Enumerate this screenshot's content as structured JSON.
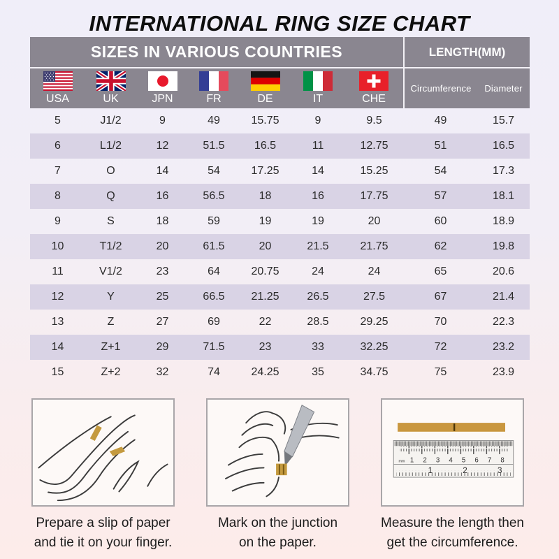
{
  "page_title": "INTERNATIONAL RING SIZE CHART",
  "table": {
    "countries_group_header": "SIZES IN VARIOUS COUNTRIES",
    "length_group_header": "LENGTH(MM)",
    "country_columns": [
      {
        "code": "USA"
      },
      {
        "code": "UK"
      },
      {
        "code": "JPN"
      },
      {
        "code": "FR"
      },
      {
        "code": "DE"
      },
      {
        "code": "IT"
      },
      {
        "code": "CHE"
      }
    ],
    "length_columns": [
      {
        "label": "Circumference"
      },
      {
        "label": "Diameter"
      }
    ]
  },
  "chart_data": {
    "type": "table",
    "title": "INTERNATIONAL RING SIZE CHART",
    "group_headers": [
      "SIZES IN VARIOUS COUNTRIES",
      "LENGTH(MM)"
    ],
    "columns": [
      "USA",
      "UK",
      "JPN",
      "FR",
      "DE",
      "IT",
      "CHE",
      "Circumference",
      "Diameter"
    ],
    "rows": [
      [
        "5",
        "J1/2",
        "9",
        "49",
        "15.75",
        "9",
        "9.5",
        "49",
        "15.7"
      ],
      [
        "6",
        "L1/2",
        "12",
        "51.5",
        "16.5",
        "11",
        "12.75",
        "51",
        "16.5"
      ],
      [
        "7",
        "O",
        "14",
        "54",
        "17.25",
        "14",
        "15.25",
        "54",
        "17.3"
      ],
      [
        "8",
        "Q",
        "16",
        "56.5",
        "18",
        "16",
        "17.75",
        "57",
        "18.1"
      ],
      [
        "9",
        "S",
        "18",
        "59",
        "19",
        "19",
        "20",
        "60",
        "18.9"
      ],
      [
        "10",
        "T1/2",
        "20",
        "61.5",
        "20",
        "21.5",
        "21.75",
        "62",
        "19.8"
      ],
      [
        "11",
        "V1/2",
        "23",
        "64",
        "20.75",
        "24",
        "24",
        "65",
        "20.6"
      ],
      [
        "12",
        "Y",
        "25",
        "66.5",
        "21.25",
        "26.5",
        "27.5",
        "67",
        "21.4"
      ],
      [
        "13",
        "Z",
        "27",
        "69",
        "22",
        "28.5",
        "29.25",
        "70",
        "22.3"
      ],
      [
        "14",
        "Z+1",
        "29",
        "71.5",
        "23",
        "33",
        "32.25",
        "72",
        "23.2"
      ],
      [
        "15",
        "Z+2",
        "32",
        "74",
        "24.25",
        "35",
        "34.75",
        "75",
        "23.9"
      ]
    ]
  },
  "instructions": [
    {
      "caption_line1": "Prepare a slip of paper",
      "caption_line2": "and tie it on your finger."
    },
    {
      "caption_line1": "Mark on the junction",
      "caption_line2": "on the paper."
    },
    {
      "caption_line1": "Measure the length then",
      "caption_line2": "get the circumference."
    }
  ],
  "ruler": {
    "unit_label": "mm",
    "cm_labels": [
      "1",
      "2",
      "3",
      "4",
      "5",
      "6",
      "7",
      "8"
    ],
    "inch_labels": [
      "1",
      "2",
      "3"
    ]
  },
  "colors": {
    "header_bg": "#8a8690",
    "row_stripe": "#d9d3e5",
    "background_top": "#f0eef9",
    "background_bottom": "#fdecea",
    "paper_strip_gold": "#c9973f"
  }
}
